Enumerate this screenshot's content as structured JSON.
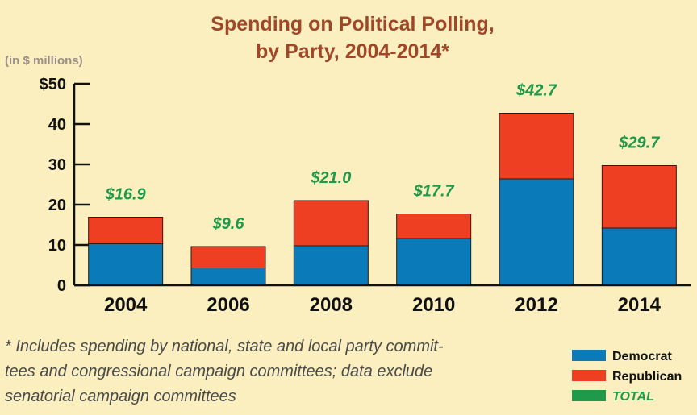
{
  "chart_data": {
    "type": "bar",
    "stacked": true,
    "title_lines": [
      "Spending on Political Polling,",
      "by Party, 2004-2014*"
    ],
    "unit_label": "(in $ millions)",
    "categories": [
      "2004",
      "2006",
      "2008",
      "2010",
      "2012",
      "2014"
    ],
    "series": [
      {
        "name": "Democrat",
        "color": "#0a7ab8",
        "values": [
          10.3,
          4.3,
          9.8,
          11.6,
          26.4,
          14.2
        ]
      },
      {
        "name": "Republican",
        "color": "#ef3f23",
        "values": [
          6.6,
          5.3,
          11.2,
          6.1,
          16.3,
          15.5
        ]
      }
    ],
    "totals": [
      16.9,
      9.6,
      21.0,
      17.7,
      42.7,
      29.7
    ],
    "total_labels": [
      "$16.9",
      "$9.6",
      "$21.0",
      "$17.7",
      "$42.7",
      "$29.7"
    ],
    "total_color": "#1f9a4a",
    "ylim": [
      0,
      50
    ],
    "yticks": [
      0,
      10,
      20,
      30,
      40,
      50
    ],
    "ytick_labels": [
      "0",
      "10",
      "20",
      "30",
      "40",
      "$50"
    ],
    "legend": [
      {
        "label": "Democrat",
        "color": "#0a7ab8"
      },
      {
        "label": "Republican",
        "color": "#ef3f23"
      },
      {
        "label": "TOTAL",
        "color": "#1f9a4a"
      }
    ],
    "legend_position": "bottom-right",
    "grid": false
  },
  "footnote_lines": [
    "* Includes spending by national, state and local party commit-",
    "tees and congressional campaign committees; data exclude",
    "senatorial campaign committees"
  ]
}
